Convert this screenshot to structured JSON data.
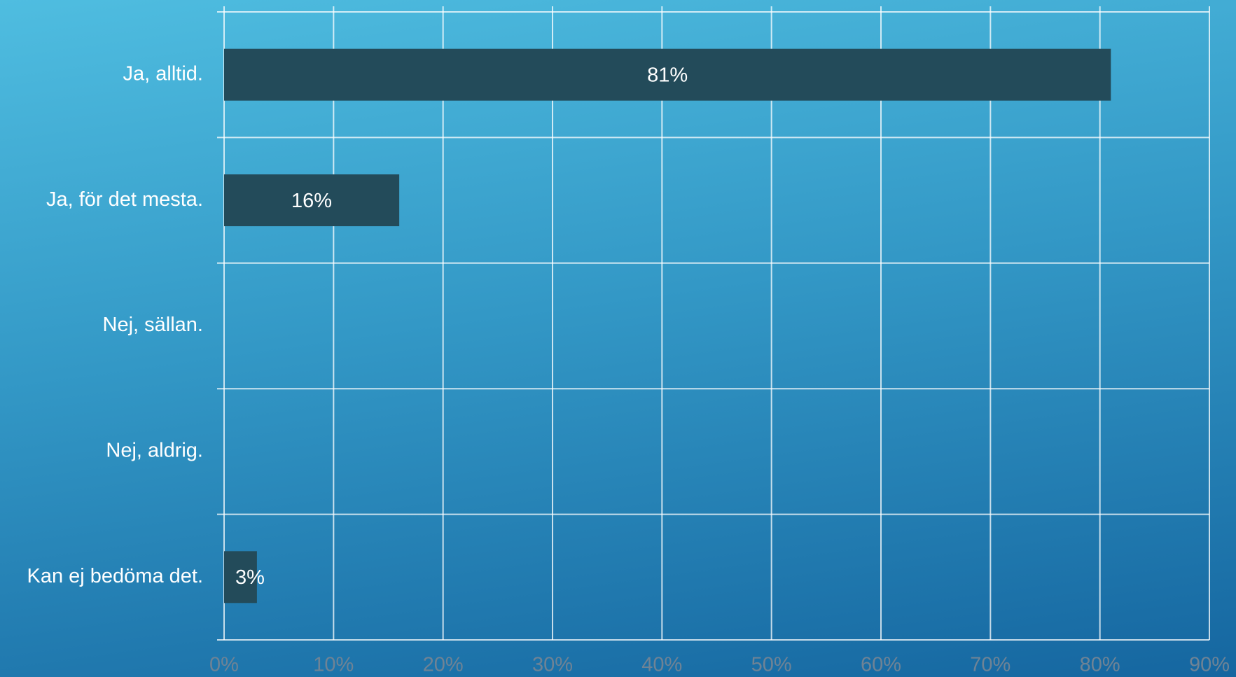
{
  "chart_data": {
    "type": "barh",
    "categories": [
      "Ja, alltid.",
      "Ja, för det mesta.",
      "Nej, sällan.",
      "Nej, aldrig.",
      "Kan ej bedöma det."
    ],
    "values": [
      81,
      16,
      0,
      0,
      3
    ],
    "value_labels": [
      "81%",
      "16%",
      null,
      null,
      "3%"
    ],
    "color": "#234b5a",
    "xlim": [
      0,
      90
    ],
    "xticks": [
      {
        "value": 0,
        "label": "0%"
      },
      {
        "value": 10,
        "label": "10%"
      },
      {
        "value": 20,
        "label": "20%"
      },
      {
        "value": 30,
        "label": "30%"
      },
      {
        "value": 40,
        "label": "40%"
      },
      {
        "value": 50,
        "label": "50%"
      },
      {
        "value": 60,
        "label": "60%"
      },
      {
        "value": 70,
        "label": "70%"
      },
      {
        "value": 80,
        "label": "80%"
      },
      {
        "value": 90,
        "label": "90%"
      }
    ],
    "grid": true
  }
}
